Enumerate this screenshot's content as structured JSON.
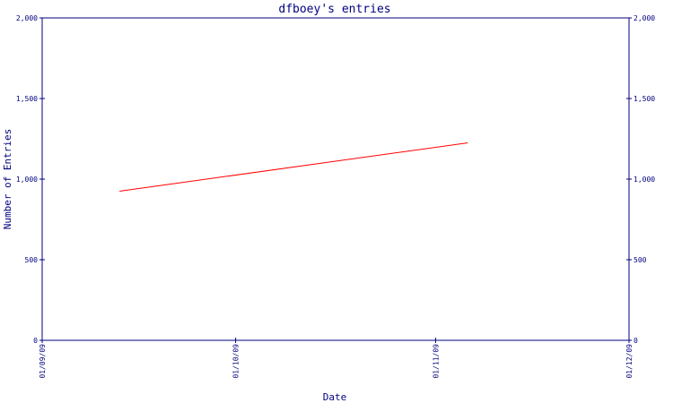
{
  "chart_data": {
    "type": "line",
    "title": "dfboey's entries",
    "xlabel": "Date",
    "ylabel": "Number of Entries",
    "x_ticks": [
      "01/09/09",
      "01/10/09",
      "01/11/09",
      "01/12/09"
    ],
    "y_ticks": [
      "0",
      "500",
      "1,000",
      "1,500",
      "2,000"
    ],
    "ylim": [
      0,
      2000
    ],
    "xlim": [
      "01/09/09",
      "01/12/09"
    ],
    "series": [
      {
        "x": [
          "2009-09-13",
          "2009-11-06"
        ],
        "values": [
          925,
          1225
        ]
      }
    ],
    "grid": false,
    "colors": {
      "axis": "#000080",
      "line": "#ff0000",
      "background": "#ffffff"
    }
  }
}
